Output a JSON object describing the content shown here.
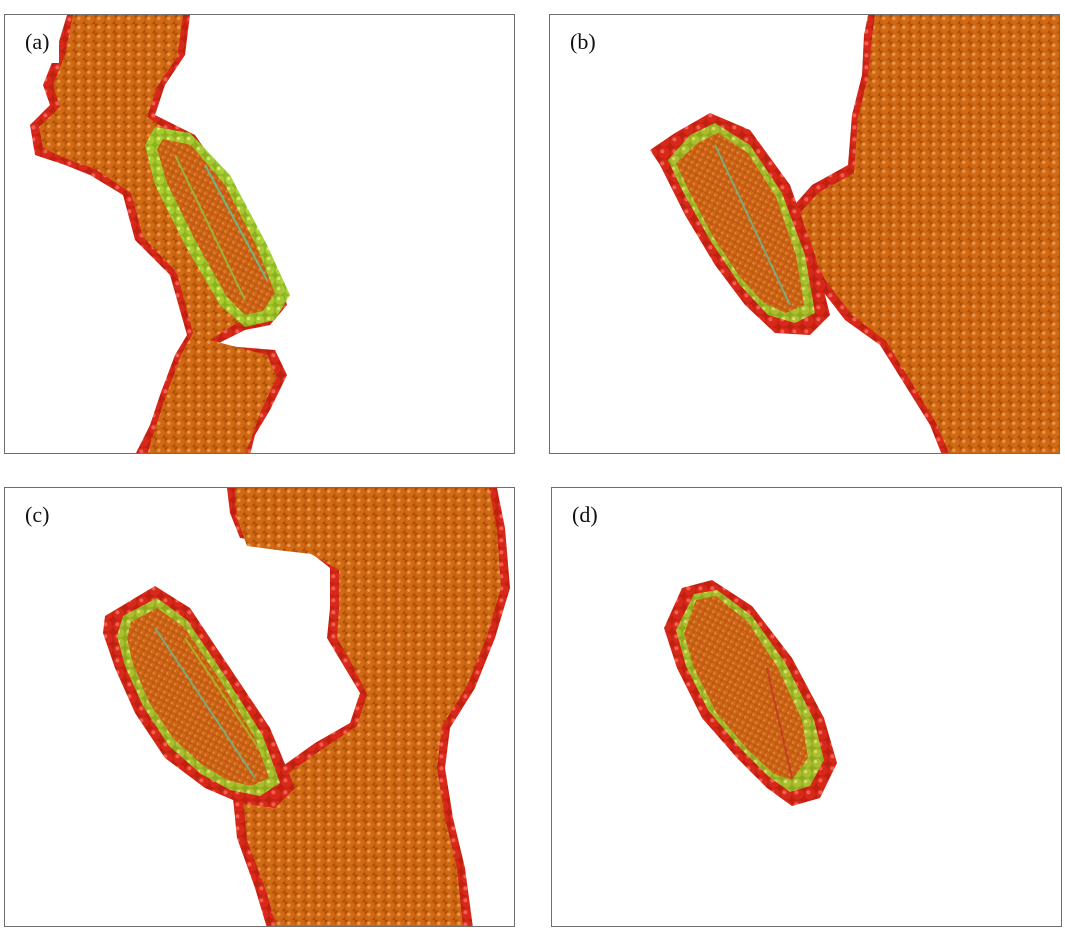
{
  "figure": {
    "panels": [
      {
        "id": "a",
        "label": "(a)"
      },
      {
        "id": "b",
        "label": "(b)"
      },
      {
        "id": "c",
        "label": "(c)"
      },
      {
        "id": "d",
        "label": "(d)"
      }
    ],
    "colors": {
      "bulk_atoms": "#c8600e",
      "bulk_atoms_light": "#dc7a1e",
      "surface_atoms": "#d21e14",
      "interface_atoms_green": "#9ccd2a",
      "interface_atoms_yellow": "#d2d22a",
      "interface_atoms_cyan": "#1ec8aa",
      "frame": "#6e6e6e",
      "background": "#ffffff"
    }
  }
}
